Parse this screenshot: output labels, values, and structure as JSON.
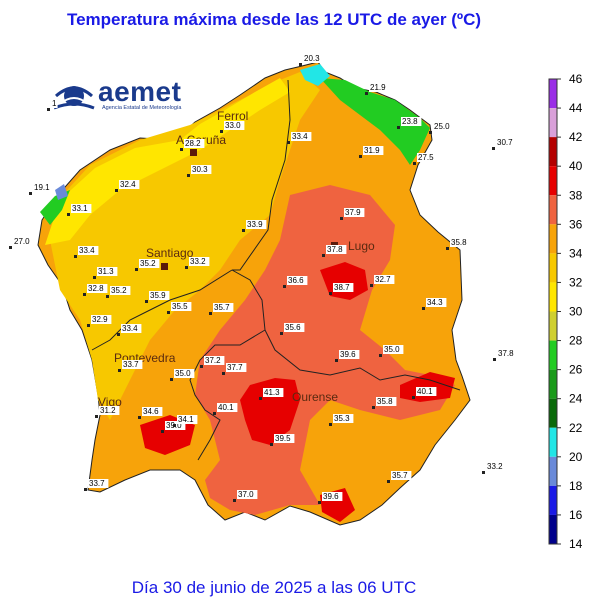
{
  "title": "Temperatura máxima desde las 12 UTC de ayer (ºC)",
  "footer": "Día 30 de junio de 2025 a las 06 UTC",
  "logo": {
    "name": "aemet",
    "subtitle": "Agencia Estatal de Meteorología",
    "icon": "aemet-sun-logo"
  },
  "colors": {
    "background_sea": "#ffffff",
    "region_base": "#f7a30a",
    "warm_zone": "#ef6340",
    "hot_zone": "#e60000",
    "cool_zone": "#f5d21e",
    "coast_green": "#22cc22",
    "coast_cyan": "#22e6e6",
    "border_line": "#222222"
  },
  "legend": {
    "ticks": [
      "46",
      "44",
      "42",
      "40",
      "38",
      "36",
      "34",
      "32",
      "30",
      "28",
      "26",
      "24",
      "22",
      "20",
      "18",
      "16",
      "14"
    ],
    "bands": [
      {
        "range": "44-46",
        "color": "#9a2ee6"
      },
      {
        "range": "42-44",
        "color": "#d9a0d9"
      },
      {
        "range": "40-42",
        "color": "#b40000"
      },
      {
        "range": "38-40",
        "color": "#e60000"
      },
      {
        "range": "36-38",
        "color": "#ef6340"
      },
      {
        "range": "34-36",
        "color": "#f7a30a"
      },
      {
        "range": "32-34",
        "color": "#f7c800"
      },
      {
        "range": "30-32",
        "color": "#ffe600"
      },
      {
        "range": "28-30",
        "color": "#cfcf30"
      },
      {
        "range": "26-28",
        "color": "#22cc22"
      },
      {
        "range": "24-26",
        "color": "#1a9a1a"
      },
      {
        "range": "22-24",
        "color": "#0a6a0a"
      },
      {
        "range": "20-22",
        "color": "#22e6e6"
      },
      {
        "range": "18-20",
        "color": "#6a8ad9"
      },
      {
        "range": "16-18",
        "color": "#1a1ae6"
      },
      {
        "range": "14-16",
        "color": "#00008b"
      }
    ]
  },
  "cities": [
    {
      "name": "Ferrol"
    },
    {
      "name": "A Coruña"
    },
    {
      "name": "Santiago"
    },
    {
      "name": "Lugo"
    },
    {
      "name": "Pontevedra"
    },
    {
      "name": "Vigo"
    },
    {
      "name": "Ourense"
    }
  ],
  "stations": [
    "20.3",
    "21.9",
    "23.8",
    "25.0",
    "27.5",
    "30.7",
    "33.0",
    "33.4",
    "31.9",
    "28.2",
    "30.3",
    "19.1",
    "32.4",
    "33.1",
    "27.0",
    "33.4",
    "37.9",
    "35.8",
    "33.9",
    "37.8",
    "35.2",
    "33.2",
    "31.3",
    "32.8",
    "35.2",
    "35.9",
    "36.6",
    "38.7",
    "32.7",
    "35.5",
    "35.7",
    "34.3",
    "32.9",
    "33.4",
    "35.6",
    "39.6",
    "35.0",
    "37.8",
    "33.7",
    "37.2",
    "37.7",
    "35.0",
    "41.3",
    "40.1",
    "35.8",
    "40.1",
    "31.2",
    "34.6",
    "39.0",
    "34.1",
    "35.3",
    "39.5",
    "33.2",
    "35.7",
    "37.0",
    "39.6",
    "33.7",
    "1"
  ]
}
